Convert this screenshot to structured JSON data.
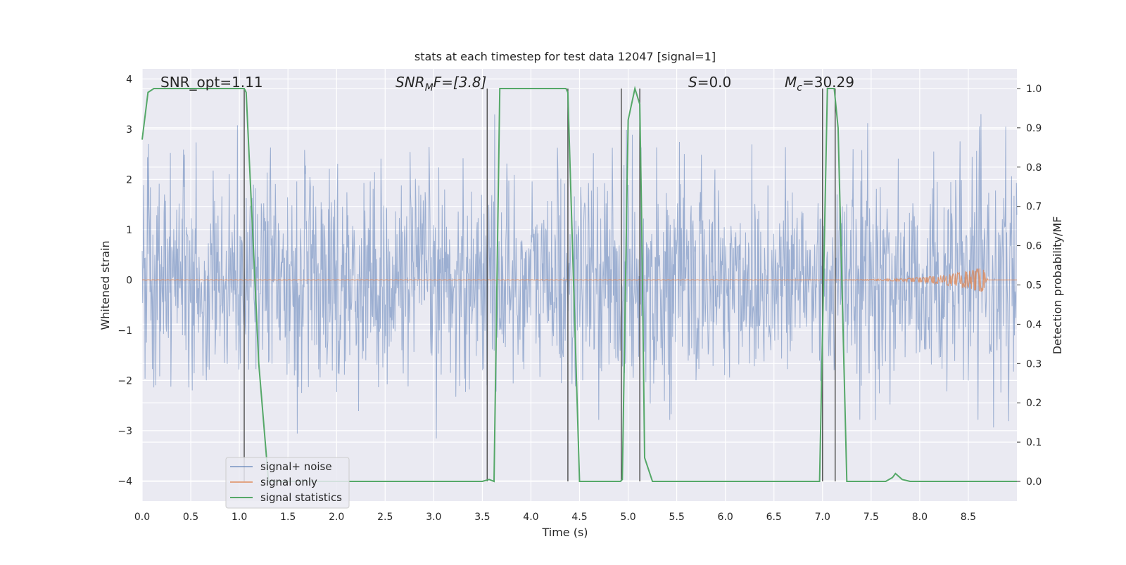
{
  "chart_data": {
    "type": "line",
    "title": "stats at each timestep for test data 12047 [signal=1]",
    "xlabel": "Time (s)",
    "ylabel_left": "Whitened strain",
    "ylabel_right": "Detection probability/MF",
    "xlim": [
      0.0,
      9.0
    ],
    "ylim_left": [
      -4.4,
      4.2
    ],
    "ylim_right": [
      -0.05,
      1.05
    ],
    "x_ticks": [
      "0.0",
      "0.5",
      "1.0",
      "1.5",
      "2.0",
      "2.5",
      "3.0",
      "3.5",
      "4.0",
      "4.5",
      "5.0",
      "5.5",
      "6.0",
      "6.5",
      "7.0",
      "7.5",
      "8.0",
      "8.5"
    ],
    "y_left_ticks": [
      "4",
      "3",
      "2",
      "1",
      "0",
      "−1",
      "−2",
      "−3",
      "−4"
    ],
    "y_right_ticks": [
      "1.0",
      "0.9",
      "0.8",
      "0.7",
      "0.6",
      "0.5",
      "0.4",
      "0.3",
      "0.2",
      "0.1",
      "0.0"
    ],
    "grid": true,
    "legend_position": "lower-left",
    "colors": {
      "background": "#eaeaf2",
      "grid": "#ffffff",
      "noise": "#4c72b0",
      "signal": "#dd8452",
      "statistics": "#55a868",
      "vlines": "#555555"
    },
    "annotations": {
      "snr_opt": "SNR_opt=1.11",
      "snr_mf_main": "SNR",
      "snr_mf_sub": "M",
      "snr_mf_rest": "F=[3.8]",
      "s_italic": "S",
      "s_rest": "=0.0",
      "mc_main": "M",
      "mc_sub": "c",
      "mc_rest": "=30.29"
    },
    "series": [
      {
        "name": "signal+ noise",
        "style": "noisy whitened strain, amplitude approx ±3.3",
        "amplitude": 3.3
      },
      {
        "name": "signal only",
        "style": "chirp near zero growing to approx ±0.25 at 8.65 s",
        "peak_x": 8.65,
        "peak_amplitude": 0.25
      },
      {
        "name": "signal statistics",
        "x": [
          0.0,
          0.06,
          0.12,
          1.05,
          1.07,
          1.2,
          1.3,
          3.5,
          3.57,
          3.62,
          3.68,
          4.36,
          4.38,
          4.5,
          4.92,
          4.94,
          5.0,
          5.07,
          5.12,
          5.14,
          5.17,
          5.25,
          5.5,
          6.97,
          7.05,
          7.12,
          7.16,
          7.25,
          7.3,
          7.65,
          7.72,
          7.75,
          7.82,
          7.9,
          9.0
        ],
        "y": [
          0.87,
          0.99,
          1.0,
          1.0,
          0.99,
          0.3,
          0.0,
          0.0,
          0.005,
          0.0,
          1.0,
          1.0,
          0.99,
          0.0,
          0.0,
          0.005,
          0.92,
          1.0,
          0.96,
          0.65,
          0.06,
          0.0,
          0.0,
          0.0,
          1.0,
          1.0,
          0.9,
          0.0,
          0.0,
          0.0,
          0.01,
          0.02,
          0.005,
          0.0,
          0.0
        ]
      }
    ],
    "vlines": [
      {
        "x": 1.05,
        "y0": 0.0,
        "y1": 1.0
      },
      {
        "x": 3.55,
        "y0": 0.0,
        "y1": 1.0
      },
      {
        "x": 4.38,
        "y0": 0.0,
        "y1": 1.0
      },
      {
        "x": 4.93,
        "y0": 0.0,
        "y1": 1.0
      },
      {
        "x": 5.12,
        "y0": 0.0,
        "y1": 1.0
      },
      {
        "x": 7.0,
        "y0": 0.0,
        "y1": 1.0
      },
      {
        "x": 7.13,
        "y0": 0.0,
        "y1": 1.0
      }
    ],
    "legend": [
      "signal+ noise",
      "signal only",
      "signal statistics"
    ]
  }
}
